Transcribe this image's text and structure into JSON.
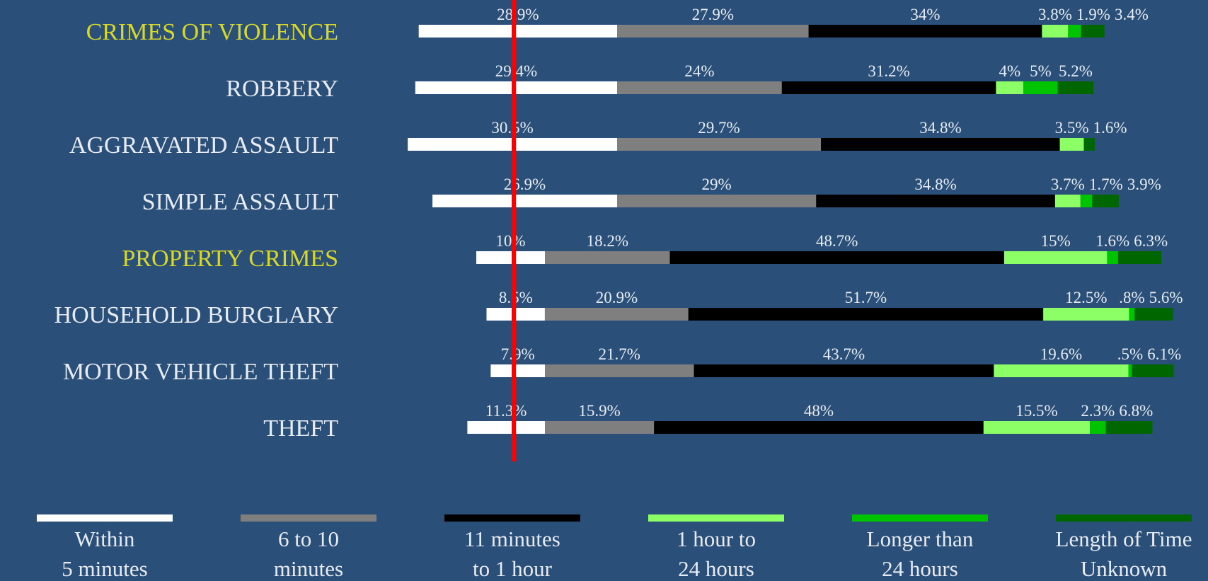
{
  "chart_data": {
    "type": "bar",
    "stacked": true,
    "orientation": "horizontal",
    "title": "",
    "xlabel": "",
    "ylabel": "",
    "categories": [
      "CRIMES OF VIOLENCE",
      "ROBBERY",
      "AGGRAVATED ASSAULT",
      "SIMPLE ASSAULT",
      "PROPERTY CRIMES",
      "HOUSEHOLD BURGLARY",
      "MOTOR VEHICLE THEFT",
      "THEFT"
    ],
    "highlighted_categories": [
      "CRIMES OF VIOLENCE",
      "PROPERTY CRIMES"
    ],
    "series": [
      {
        "name": "Within 5 minutes",
        "label_lines": [
          "Within",
          "5 minutes"
        ],
        "color": "#ffffff",
        "values": [
          28.9,
          29.4,
          30.5,
          26.9,
          10,
          8.5,
          7.9,
          11.3
        ],
        "labels": [
          "28.9%",
          "29.4%",
          "30.5%",
          "26.9%",
          "10%",
          "8.5%",
          "7.9%",
          "11.3%"
        ]
      },
      {
        "name": "6 to 10 minutes",
        "label_lines": [
          "6 to 10",
          "minutes"
        ],
        "color": "#7f7f7f",
        "values": [
          27.9,
          24,
          29.7,
          29,
          18.2,
          20.9,
          21.7,
          15.9
        ],
        "labels": [
          "27.9%",
          "24%",
          "29.7%",
          "29%",
          "18.2%",
          "20.9%",
          "21.7%",
          "15.9%"
        ]
      },
      {
        "name": "11 minutes to 1 hour",
        "label_lines": [
          "11 minutes",
          "to 1 hour"
        ],
        "color": "#000000",
        "values": [
          34,
          31.2,
          34.8,
          34.8,
          48.7,
          51.7,
          43.7,
          48
        ],
        "labels": [
          "34%",
          "31.2%",
          "34.8%",
          "34.8%",
          "48.7%",
          "51.7%",
          "43.7%",
          "48%"
        ]
      },
      {
        "name": "1 hour to 24 hours",
        "label_lines": [
          "1 hour to",
          "24 hours"
        ],
        "color": "#8cff66",
        "values": [
          3.8,
          4,
          3.5,
          3.7,
          15,
          12.5,
          19.6,
          15.5
        ],
        "labels": [
          "3.8%",
          "4%",
          "3.5%",
          "3.7%",
          "15%",
          "12.5%",
          "19.6%",
          "15.5%"
        ]
      },
      {
        "name": "Longer than 24 hours",
        "label_lines": [
          "Longer than",
          "24 hours"
        ],
        "color": "#00c400",
        "values": [
          1.9,
          5,
          0,
          1.7,
          1.6,
          0.8,
          0.5,
          2.3
        ],
        "labels": [
          "1.9%",
          "5%",
          "",
          "1.7%",
          "1.6%",
          ".8%",
          ".5%",
          "2.3%"
        ]
      },
      {
        "name": "Length of Time Unknown",
        "label_lines": [
          "Length of Time",
          "Unknown"
        ],
        "color": "#006600",
        "values": [
          3.4,
          5.2,
          1.6,
          3.9,
          6.3,
          5.6,
          6.1,
          6.8
        ],
        "labels": [
          "3.4%",
          "5.2%",
          "1.6%",
          "3.9%",
          "6.3%",
          "5.6%",
          "6.1%",
          "6.8%"
        ]
      }
    ],
    "reference_line": {
      "color": "#ff0000",
      "position": "end of Within 5 minutes for PROPERTY CRIMES"
    },
    "grid": false,
    "legend_position": "bottom",
    "colors": {
      "background": "#2a5079",
      "category_text": "#e8ecf2",
      "highlight_text": "#d8d82a",
      "value_text": "#e8ecf2"
    }
  }
}
